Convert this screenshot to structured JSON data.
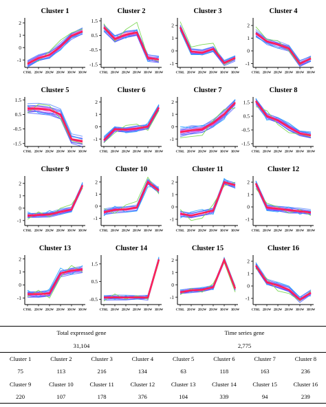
{
  "chart_data": [
    {
      "type": "line",
      "title": "Cluster 1",
      "categories": [
        "CTRL",
        "2D1W",
        "2D2W",
        "2D3W",
        "3D1W",
        "3D3W"
      ],
      "yticks": [
        -1,
        0,
        1,
        2
      ],
      "ylim": [
        -1.6,
        2.4
      ],
      "mean": [
        -1.3,
        -0.85,
        -0.6,
        0.1,
        0.95,
        1.3
      ],
      "spread": 0.25,
      "outliers": [
        {
          "color": "#7ed957",
          "values": [
            -1.2,
            -1.1,
            -0.3,
            0.6,
            1.2,
            1.5
          ]
        },
        {
          "color": "#2fa8ff",
          "values": [
            -1.5,
            -1.0,
            -0.8,
            -0.2,
            0.8,
            1.2
          ]
        }
      ]
    },
    {
      "type": "line",
      "title": "Cluster 2",
      "categories": [
        "CTRL",
        "2D1W",
        "2D2W",
        "2D3W",
        "3D1W",
        "3D3W"
      ],
      "yticks": [
        -1.5,
        -0.5,
        0.5,
        1.5
      ],
      "ylim": [
        -1.7,
        1.7
      ],
      "mean": [
        1.05,
        0.25,
        0.55,
        0.7,
        -1.05,
        -1.15
      ],
      "spread": 0.22,
      "outliers": [
        {
          "color": "#7ed957",
          "values": [
            1.3,
            0.1,
            0.9,
            1.4,
            -1.0,
            -1.3
          ]
        },
        {
          "color": "#2fa8ff",
          "values": [
            0.8,
            0.5,
            0.3,
            0.9,
            -1.3,
            -1.0
          ]
        }
      ]
    },
    {
      "type": "line",
      "title": "Cluster 3",
      "categories": [
        "CTRL",
        "2D1W",
        "2D2W",
        "2D3W",
        "3D1W",
        "3D3W"
      ],
      "yticks": [
        -1,
        0,
        1,
        2
      ],
      "ylim": [
        -1.3,
        2.6
      ],
      "mean": [
        1.85,
        -0.05,
        -0.15,
        0.15,
        -0.95,
        -0.55
      ],
      "spread": 0.2,
      "outliers": [
        {
          "color": "#7ed957",
          "values": [
            2.3,
            0.3,
            0.5,
            0.6,
            -1.1,
            -0.6
          ]
        },
        {
          "color": "#2fa8ff",
          "values": [
            1.6,
            -0.3,
            -0.3,
            0.0,
            -0.8,
            -0.4
          ]
        }
      ]
    },
    {
      "type": "line",
      "title": "Cluster 4",
      "categories": [
        "CTRL",
        "2D1W",
        "2D2W",
        "2D3W",
        "3D1W",
        "3D3W"
      ],
      "yticks": [
        -1,
        0,
        1,
        2
      ],
      "ylim": [
        -1.3,
        2.6
      ],
      "mean": [
        1.4,
        0.75,
        0.5,
        0.2,
        -1.0,
        -0.6
      ],
      "spread": 0.22,
      "outliers": [
        {
          "color": "#7ed957",
          "values": [
            1.9,
            0.9,
            0.8,
            0.0,
            -1.1,
            -0.5
          ]
        },
        {
          "color": "#2fa8ff",
          "values": [
            1.1,
            0.6,
            0.2,
            0.4,
            -0.9,
            -0.8
          ]
        }
      ]
    },
    {
      "type": "line",
      "title": "Cluster 5",
      "categories": [
        "CTRL",
        "2D1W",
        "2D2W",
        "2D3W",
        "3D1W",
        "3D3W"
      ],
      "yticks": [
        -1.5,
        -0.5,
        0.5,
        1.5
      ],
      "ylim": [
        -1.7,
        1.7
      ],
      "mean": [
        0.9,
        0.9,
        0.8,
        0.5,
        -1.2,
        -1.35
      ],
      "spread": 0.3,
      "outliers": [
        {
          "color": "#7ed957",
          "values": [
            0.6,
            1.2,
            1.1,
            0.2,
            -1.3,
            -1.5
          ]
        },
        {
          "color": "#2fa8ff",
          "values": [
            1.1,
            0.6,
            0.5,
            0.8,
            -1.0,
            -1.2
          ]
        }
      ]
    },
    {
      "type": "line",
      "title": "Cluster 6",
      "categories": [
        "CTRL",
        "2D1W",
        "2D2W",
        "2D3W",
        "3D1W",
        "3D3W"
      ],
      "yticks": [
        -1,
        0,
        1,
        2
      ],
      "ylim": [
        -1.6,
        2.4
      ],
      "mean": [
        -1.1,
        -0.2,
        -0.25,
        -0.15,
        0.0,
        1.55
      ],
      "spread": 0.2,
      "outliers": [
        {
          "color": "#7ed957",
          "values": [
            -1.3,
            -0.5,
            0.1,
            0.2,
            -0.3,
            1.3
          ]
        },
        {
          "color": "#2fa8ff",
          "values": [
            -0.8,
            0.0,
            -0.5,
            -0.4,
            0.3,
            1.8
          ]
        }
      ]
    },
    {
      "type": "line",
      "title": "Cluster 7",
      "categories": [
        "CTRL",
        "2D1W",
        "2D2W",
        "2D3W",
        "3D1W",
        "3D3W"
      ],
      "yticks": [
        -1,
        0,
        1,
        2
      ],
      "ylim": [
        -1.6,
        2.4
      ],
      "mean": [
        -0.45,
        -0.3,
        -0.2,
        0.3,
        1.0,
        1.95
      ],
      "spread": 0.3,
      "outliers": [
        {
          "color": "#7ed957",
          "values": [
            -0.9,
            -0.8,
            -0.7,
            0.5,
            1.4,
            1.5
          ]
        },
        {
          "color": "#2fa8ff",
          "values": [
            0.0,
            -0.1,
            0.1,
            0.0,
            0.6,
            2.2
          ]
        }
      ]
    },
    {
      "type": "line",
      "title": "Cluster 8",
      "categories": [
        "CTRL",
        "2D1W",
        "2D2W",
        "2D3W",
        "3D1W",
        "3D3W"
      ],
      "yticks": [
        -1.5,
        -0.5,
        0.5,
        1.5
      ],
      "ylim": [
        -1.7,
        1.9
      ],
      "mean": [
        1.6,
        0.5,
        0.2,
        -0.3,
        -0.75,
        -0.9
      ],
      "spread": 0.2,
      "outliers": [
        {
          "color": "#7ed957",
          "values": [
            1.2,
            0.9,
            -0.1,
            -0.7,
            -0.8,
            -1.0
          ]
        },
        {
          "color": "#2fa8ff",
          "values": [
            1.8,
            0.2,
            0.4,
            0.0,
            -0.6,
            -0.7
          ]
        }
      ]
    },
    {
      "type": "line",
      "title": "Cluster 9",
      "categories": [
        "CTRL",
        "2D1W",
        "2D2W",
        "2D3W",
        "3D1W",
        "3D3W"
      ],
      "yticks": [
        -1,
        0,
        1,
        2
      ],
      "ylim": [
        -1.4,
        2.6
      ],
      "mean": [
        -0.6,
        -0.55,
        -0.5,
        -0.3,
        -0.1,
        1.85
      ],
      "spread": 0.18,
      "outliers": [
        {
          "color": "#7ed957",
          "values": [
            -0.9,
            -0.3,
            -0.7,
            0.0,
            0.3,
            1.6
          ]
        },
        {
          "color": "#2fa8ff",
          "values": [
            -0.3,
            -0.7,
            -0.2,
            -0.5,
            -0.3,
            2.1
          ]
        }
      ]
    },
    {
      "type": "line",
      "title": "Cluster 10",
      "categories": [
        "CTRL",
        "2D1W",
        "2D2W",
        "2D3W",
        "3D1W",
        "3D3W"
      ],
      "yticks": [
        -1,
        0,
        1,
        2
      ],
      "ylim": [
        -1.6,
        2.5
      ],
      "mean": [
        -0.5,
        -0.3,
        -0.25,
        -0.1,
        2.0,
        1.3
      ],
      "spread": 0.22,
      "outliers": [
        {
          "color": "#7ed957",
          "values": [
            -0.2,
            -0.6,
            0.1,
            0.4,
            2.4,
            1.0
          ]
        },
        {
          "color": "#2fa8ff",
          "values": [
            -0.8,
            0.0,
            -0.5,
            -0.4,
            1.6,
            1.6
          ]
        }
      ]
    },
    {
      "type": "line",
      "title": "Cluster 11",
      "categories": [
        "CTRL",
        "2D1W",
        "2D2W",
        "2D3W",
        "3D1W",
        "3D3W"
      ],
      "yticks": [
        -1,
        0,
        1,
        2
      ],
      "ylim": [
        -1.5,
        2.5
      ],
      "mean": [
        -0.55,
        -0.7,
        -0.5,
        -0.3,
        2.0,
        1.75
      ],
      "spread": 0.2,
      "outliers": [
        {
          "color": "#7ed957",
          "values": [
            -0.2,
            -1.1,
            -0.9,
            0.2,
            1.7,
            2.0
          ]
        },
        {
          "color": "#2fa8ff",
          "values": [
            -0.9,
            -0.4,
            -0.2,
            -0.6,
            2.3,
            1.5
          ]
        }
      ]
    },
    {
      "type": "line",
      "title": "Cluster 12",
      "categories": [
        "CTRL",
        "2D1W",
        "2D2W",
        "2D3W",
        "3D1W",
        "3D3W"
      ],
      "yticks": [
        -1,
        0,
        1,
        2
      ],
      "ylim": [
        -1.5,
        2.5
      ],
      "mean": [
        1.9,
        -0.05,
        -0.15,
        -0.25,
        -0.35,
        -0.45
      ],
      "spread": 0.2,
      "outliers": [
        {
          "color": "#7ed957",
          "values": [
            1.5,
            0.3,
            0.0,
            -0.5,
            -0.2,
            -0.7
          ]
        },
        {
          "color": "#2fa8ff",
          "values": [
            2.1,
            -0.3,
            -0.4,
            0.0,
            -0.6,
            -0.3
          ]
        }
      ]
    },
    {
      "type": "line",
      "title": "Cluster 13",
      "categories": [
        "CTRL",
        "2D1W",
        "2D2W",
        "2D3W",
        "3D1W",
        "3D3W"
      ],
      "yticks": [
        -1,
        0,
        1,
        2
      ],
      "ylim": [
        -1.5,
        2.3
      ],
      "mean": [
        -0.7,
        -0.7,
        -0.65,
        0.9,
        1.1,
        1.2
      ],
      "spread": 0.22,
      "outliers": [
        {
          "color": "#7ed957",
          "values": [
            -0.9,
            -0.4,
            -1.0,
            0.6,
            1.5,
            1.0
          ]
        },
        {
          "color": "#2fa8ff",
          "values": [
            -0.4,
            -0.9,
            -0.3,
            1.3,
            0.8,
            1.5
          ]
        }
      ]
    },
    {
      "type": "line",
      "title": "Cluster 14",
      "categories": [
        "CTRL",
        "2D1W",
        "2D2W",
        "2D3W",
        "3D1W",
        "3D3W"
      ],
      "yticks": [
        -0.5,
        0.5,
        1.5
      ],
      "ylim": [
        -0.8,
        2.0
      ],
      "mean": [
        -0.4,
        -0.4,
        -0.4,
        -0.4,
        -0.4,
        1.75
      ],
      "spread": 0.12,
      "outliers": [
        {
          "color": "#7ed957",
          "values": [
            -0.6,
            -0.2,
            -0.5,
            -0.3,
            -0.5,
            1.6
          ]
        },
        {
          "color": "#2fa8ff",
          "values": [
            -0.3,
            -0.5,
            -0.3,
            -0.5,
            -0.3,
            1.9
          ]
        }
      ]
    },
    {
      "type": "line",
      "title": "Cluster 15",
      "categories": [
        "CTRL",
        "2D1W",
        "2D2W",
        "2D3W",
        "3D1W",
        "3D3W"
      ],
      "yticks": [
        -1,
        0,
        1,
        2
      ],
      "ylim": [
        -1.6,
        2.4
      ],
      "mean": [
        -0.6,
        -0.45,
        -0.4,
        -0.2,
        2.0,
        -0.3
      ],
      "spread": 0.15,
      "outliers": [
        {
          "color": "#7ed957",
          "values": [
            -0.8,
            -0.3,
            -0.6,
            0.1,
            1.8,
            -0.6
          ]
        },
        {
          "color": "#2fa8ff",
          "values": [
            -0.4,
            -0.6,
            -0.2,
            -0.4,
            2.2,
            -0.1
          ]
        }
      ]
    },
    {
      "type": "line",
      "title": "Cluster 16",
      "categories": [
        "CTRL",
        "2D1W",
        "2D2W",
        "2D3W",
        "3D1W",
        "3D3W"
      ],
      "yticks": [
        -1,
        0,
        1,
        2
      ],
      "ylim": [
        -1.5,
        2.5
      ],
      "mean": [
        1.65,
        0.3,
        0.05,
        -0.3,
        -1.1,
        -0.55
      ],
      "spread": 0.2,
      "outliers": [
        {
          "color": "#7ed957",
          "values": [
            1.4,
            0.6,
            -0.4,
            -0.6,
            -1.2,
            -0.4
          ]
        },
        {
          "color": "#2fa8ff",
          "values": [
            1.9,
            0.1,
            0.3,
            0.0,
            -0.9,
            -0.8
          ]
        }
      ]
    }
  ],
  "table": {
    "total_label": "Total expressed gene",
    "total_value": "31,104",
    "ts_label": "Time series gene",
    "ts_value": "2,775",
    "row1_labels": [
      "Cluster 1",
      "Cluster 2",
      "Cluster 3",
      "Cluster 4",
      "Cluster 5",
      "Cluster 6",
      "Cluster 7",
      "Cluster 8"
    ],
    "row1_values": [
      "75",
      "113",
      "216",
      "134",
      "63",
      "118",
      "163",
      "236"
    ],
    "row2_labels": [
      "Cluster 9",
      "Cluster 10",
      "Cluster 11",
      "Cluster 12",
      "Cluster 13",
      "Cluster 14",
      "Cluster 15",
      "Cluster 16"
    ],
    "row2_values": [
      "220",
      "107",
      "178",
      "376",
      "104",
      "339",
      "94",
      "239"
    ]
  },
  "colors": {
    "mean_band": "#ff1f5a",
    "high_band": "#e040fb",
    "low_band": "#3d4cff",
    "outlier_green": "#7ed957",
    "outlier_blue": "#2fa8ff"
  }
}
